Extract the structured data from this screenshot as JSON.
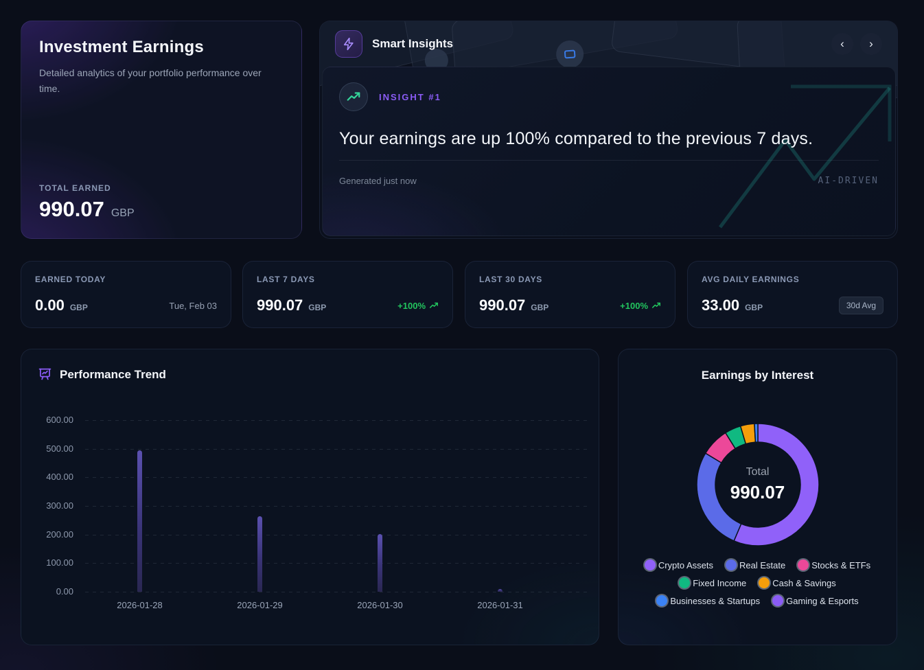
{
  "hero": {
    "title": "Investment Earnings",
    "description": "Detailed analytics of your portfolio performance over time.",
    "total_label": "TOTAL EARNED",
    "total_value": "990.07",
    "currency": "GBP"
  },
  "insights": {
    "title": "Smart Insights",
    "badge_label": "INSIGHT #1",
    "headline": "Your earnings are up 100% compared to the previous 7 days.",
    "generated": "Generated just now",
    "ai_tag": "AI-DRIVEN",
    "nav": {
      "prev_icon": "‹",
      "next_icon": "›"
    },
    "icons": {
      "header": "zap-icon",
      "insight": "trending-up-icon"
    }
  },
  "stats": [
    {
      "label": "EARNED TODAY",
      "value": "0.00",
      "currency": "GBP",
      "meta": "Tue, Feb 03",
      "meta_type": "date"
    },
    {
      "label": "LAST 7 DAYS",
      "value": "990.07",
      "currency": "GBP",
      "meta": "+100%",
      "meta_type": "trend-up"
    },
    {
      "label": "LAST 30 DAYS",
      "value": "990.07",
      "currency": "GBP",
      "meta": "+100%",
      "meta_type": "trend-up"
    },
    {
      "label": "AVG DAILY EARNINGS",
      "value": "33.00",
      "currency": "GBP",
      "meta": "30d Avg",
      "meta_type": "badge"
    }
  ],
  "chart_data": [
    {
      "type": "bar",
      "title": "Performance Trend",
      "title_icon": "presentation-chart-icon",
      "categories": [
        "2026-01-28",
        "2026-01-29",
        "2026-01-30",
        "2026-01-31"
      ],
      "values": [
        495,
        263,
        201,
        10
      ],
      "xlabel": "",
      "ylabel": "",
      "ylim": [
        0,
        600
      ],
      "yticks": [
        0,
        100,
        200,
        300,
        400,
        500,
        600
      ],
      "grid": "dashed-horizontal",
      "legend": "none",
      "bar_color": "#4c4192"
    },
    {
      "type": "pie",
      "subtype": "donut",
      "title": "Earnings by Interest",
      "center_label": "Total",
      "center_value": "990.07",
      "legend_position": "bottom",
      "segments": [
        {
          "label": "Crypto Assets",
          "value": 558.47,
          "color": "#9061f9"
        },
        {
          "label": "Real Estate",
          "value": 269.3,
          "color": "#5b6be8"
        },
        {
          "label": "Stocks & ETFs",
          "value": 74.3,
          "color": "#ec4899"
        },
        {
          "label": "Fixed Income",
          "value": 42.5,
          "color": "#10b981"
        },
        {
          "label": "Cash & Savings",
          "value": 36.5,
          "color": "#f59e0b"
        },
        {
          "label": "Businesses & Startups",
          "value": 9.0,
          "color": "#3b82f6"
        },
        {
          "label": "Gaming & Esports",
          "value": 0.0,
          "color": "#8b5cf6"
        }
      ]
    }
  ]
}
